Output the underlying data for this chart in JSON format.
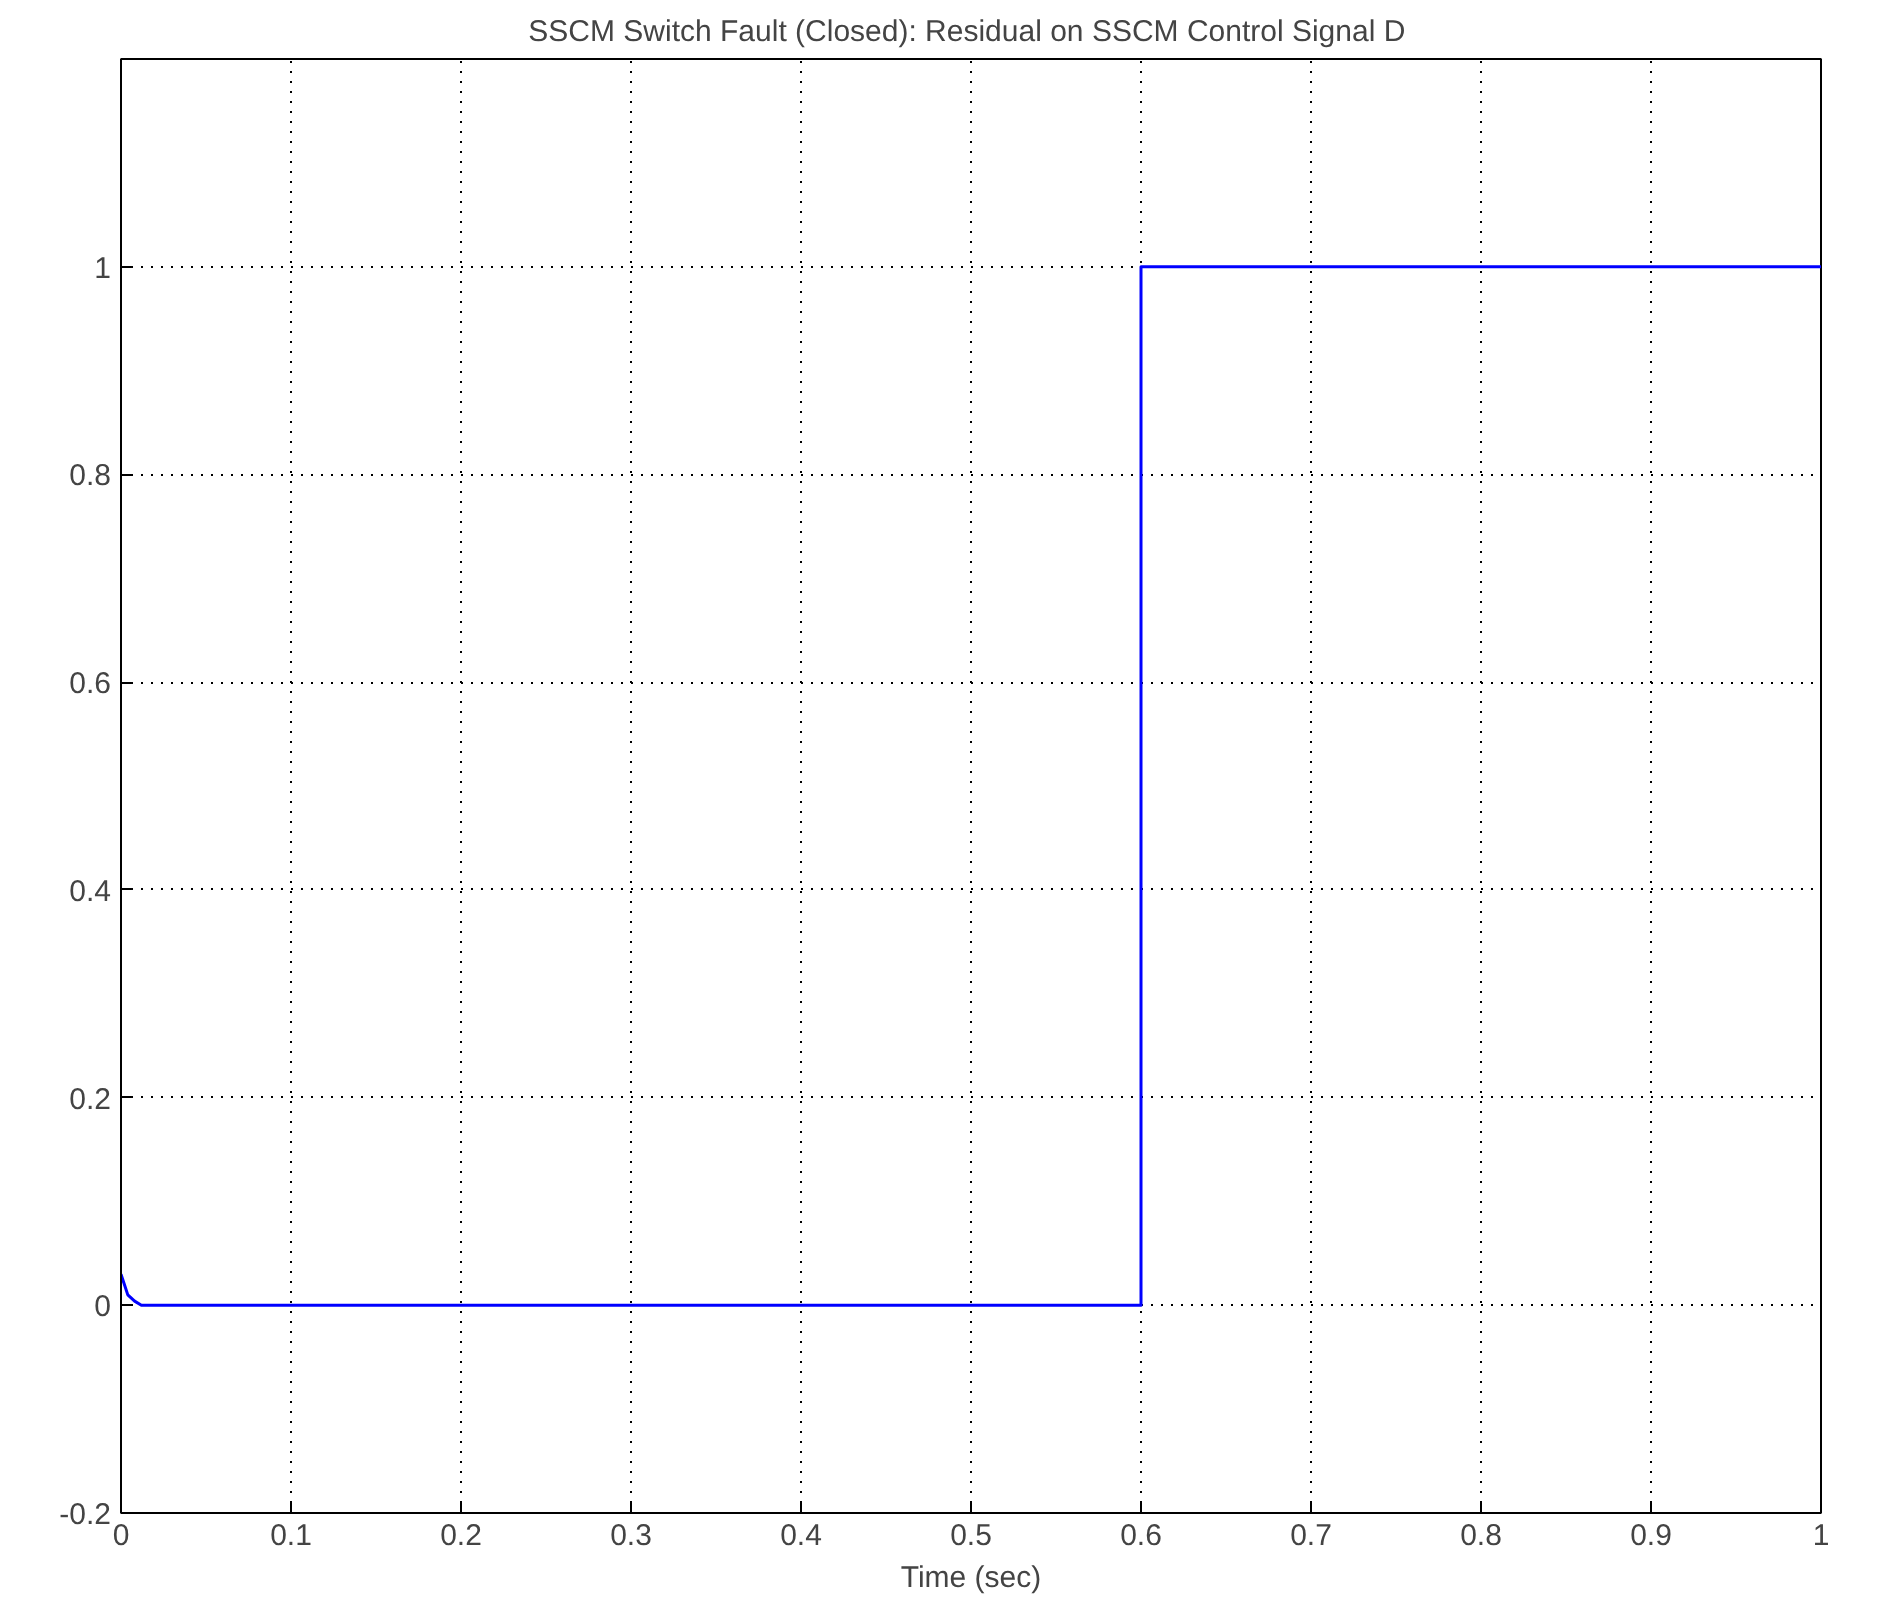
{
  "chart_data": {
    "type": "line",
    "title": "SSCM Switch Fault (Closed):  Residual on SSCM Control Signal D",
    "xlabel": "Time (sec)",
    "x": [
      0,
      0.002,
      0.004,
      0.008,
      0.012,
      0.6,
      0.6,
      1
    ],
    "series": [
      {
        "color": "#0000ff",
        "values": [
          0.03,
          0.02,
          0.01,
          0.004,
          0,
          0,
          1,
          1
        ]
      }
    ],
    "xlim": [
      0,
      1
    ],
    "ylim": [
      -0.2,
      1.2
    ],
    "xticks": [
      0,
      0.1,
      0.2,
      0.3,
      0.4,
      0.5,
      0.6,
      0.7,
      0.8,
      0.9,
      1
    ],
    "yticks": [
      -0.2,
      0,
      0.2,
      0.4,
      0.6,
      0.8,
      1
    ],
    "grid": true,
    "line_style": "solid",
    "marker": "none"
  }
}
